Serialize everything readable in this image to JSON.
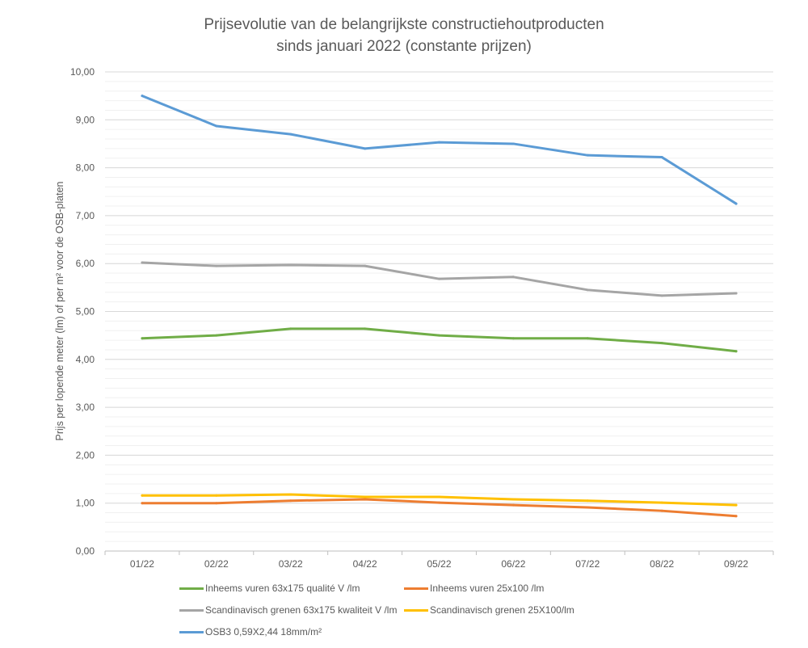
{
  "chart_data": {
    "type": "line",
    "title_line1": "Prijsevolutie van de belangrijkste constructiehoutproducten",
    "title_line2": "sinds januari 2022 (constante prijzen)",
    "xlabel": "",
    "ylabel": "Prijs per lopende meter (lm)  of per m² voor de OSB-platen",
    "ylim": [
      0,
      10
    ],
    "yticks": [
      "0,00",
      "1,00",
      "2,00",
      "3,00",
      "4,00",
      "5,00",
      "6,00",
      "7,00",
      "8,00",
      "9,00",
      "10,00"
    ],
    "minor_grid_step": 0.2,
    "grid": true,
    "legend_position": "bottom",
    "categories": [
      "01/22",
      "02/22",
      "03/22",
      "04/22",
      "05/22",
      "06/22",
      "07/22",
      "08/22",
      "09/22"
    ],
    "series": [
      {
        "name": "Inheems vuren 63x175 qualité V /lm",
        "color": "#70AD47",
        "values": [
          4.44,
          4.5,
          4.64,
          4.64,
          4.5,
          4.44,
          4.44,
          4.34,
          4.17
        ]
      },
      {
        "name": "Inheems vuren 25x100 /lm",
        "color": "#ED7D31",
        "values": [
          1.0,
          1.0,
          1.05,
          1.08,
          1.01,
          0.96,
          0.91,
          0.84,
          0.73
        ]
      },
      {
        "name": "Scandinavisch grenen 63x175 kwaliteit V /lm",
        "color": "#A5A5A5",
        "values": [
          6.02,
          5.95,
          5.97,
          5.95,
          5.68,
          5.72,
          5.45,
          5.33,
          5.38
        ]
      },
      {
        "name": "Scandinavisch grenen 25X100/lm",
        "color": "#FFC000",
        "values": [
          1.16,
          1.16,
          1.18,
          1.13,
          1.13,
          1.08,
          1.05,
          1.01,
          0.96
        ]
      },
      {
        "name": "OSB3 0,59X2,44 18mm/m²",
        "color": "#5B9BD5",
        "values": [
          9.5,
          8.87,
          8.7,
          8.4,
          8.53,
          8.5,
          8.26,
          8.22,
          7.25
        ]
      }
    ]
  }
}
